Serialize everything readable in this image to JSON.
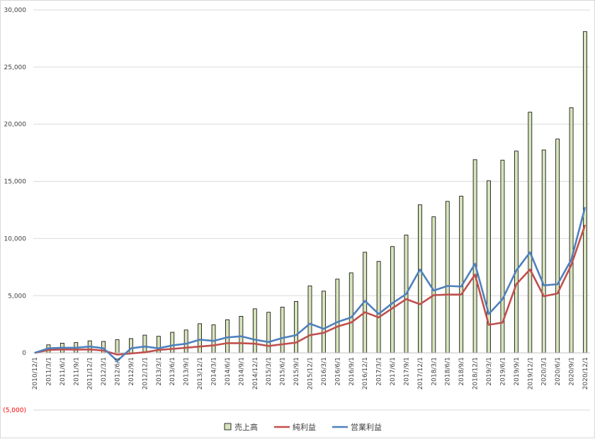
{
  "chart_data": {
    "type": "bar+line",
    "title": "",
    "xlabel": "",
    "ylabel": "",
    "ylim": [
      -5000,
      30000
    ],
    "y_ticks": [
      -5000,
      0,
      5000,
      10000,
      15000,
      20000,
      25000,
      30000
    ],
    "y_tick_labels": [
      "(5,000)",
      "0",
      "5,000",
      "10,000",
      "15,000",
      "20,000",
      "25,000",
      "30,000"
    ],
    "grid": "horizontal",
    "legend_position": "bottom",
    "categories": [
      "2010/12/1",
      "2011/3/1",
      "2011/6/1",
      "2011/9/1",
      "2011/12/1",
      "2012/3/1",
      "2012/6/1",
      "2012/9/1",
      "2012/12/1",
      "2013/3/1",
      "2013/6/1",
      "2013/9/1",
      "2013/12/1",
      "2014/3/1",
      "2014/6/1",
      "2014/9/1",
      "2014/12/1",
      "2015/3/1",
      "2015/6/1",
      "2015/9/1",
      "2015/12/1",
      "2016/3/1",
      "2016/6/1",
      "2016/9/1",
      "2016/12/1",
      "2017/3/1",
      "2017/6/1",
      "2017/9/1",
      "2017/12/1",
      "2018/3/1",
      "2018/6/1",
      "2018/9/1",
      "2018/12/1",
      "2019/3/1",
      "2019/6/1",
      "2019/9/1",
      "2019/12/1",
      "2020/3/1",
      "2020/6/1",
      "2020/9/1",
      "2020/12/1"
    ],
    "series": [
      {
        "name": "売上高",
        "kind": "bar",
        "color": "#d8e4bc",
        "stroke": "#000000",
        "values": [
          0,
          700,
          850,
          900,
          1050,
          1000,
          1150,
          1250,
          1550,
          1450,
          1800,
          2000,
          2550,
          2450,
          2900,
          3200,
          3850,
          3550,
          4000,
          4500,
          5850,
          5400,
          6450,
          7000,
          8800,
          8000,
          9300,
          10300,
          12950,
          11900,
          13250,
          13700,
          16900,
          15050,
          16850,
          17650,
          21050,
          17750,
          18700,
          21450,
          28100
        ]
      },
      {
        "name": "純利益",
        "kind": "line",
        "color": "#c0504d",
        "values": [
          0,
          250,
          300,
          280,
          300,
          200,
          -150,
          -50,
          50,
          250,
          350,
          450,
          550,
          650,
          850,
          850,
          800,
          600,
          750,
          900,
          1550,
          1750,
          2300,
          2650,
          3550,
          3100,
          3900,
          4700,
          4250,
          5050,
          5100,
          5100,
          6850,
          2450,
          2650,
          6000,
          7300,
          4950,
          5200,
          7700,
          11200
        ]
      },
      {
        "name": "営業利益",
        "kind": "line",
        "color": "#4f81bd",
        "values": [
          0,
          400,
          450,
          450,
          550,
          400,
          -700,
          400,
          550,
          400,
          650,
          800,
          1150,
          1050,
          1350,
          1450,
          1150,
          950,
          1300,
          1550,
          2550,
          2100,
          2700,
          3100,
          4550,
          3400,
          4350,
          5150,
          7300,
          5450,
          5850,
          5800,
          7800,
          3400,
          4700,
          7200,
          8800,
          5900,
          6000,
          8150,
          12750
        ]
      }
    ]
  }
}
